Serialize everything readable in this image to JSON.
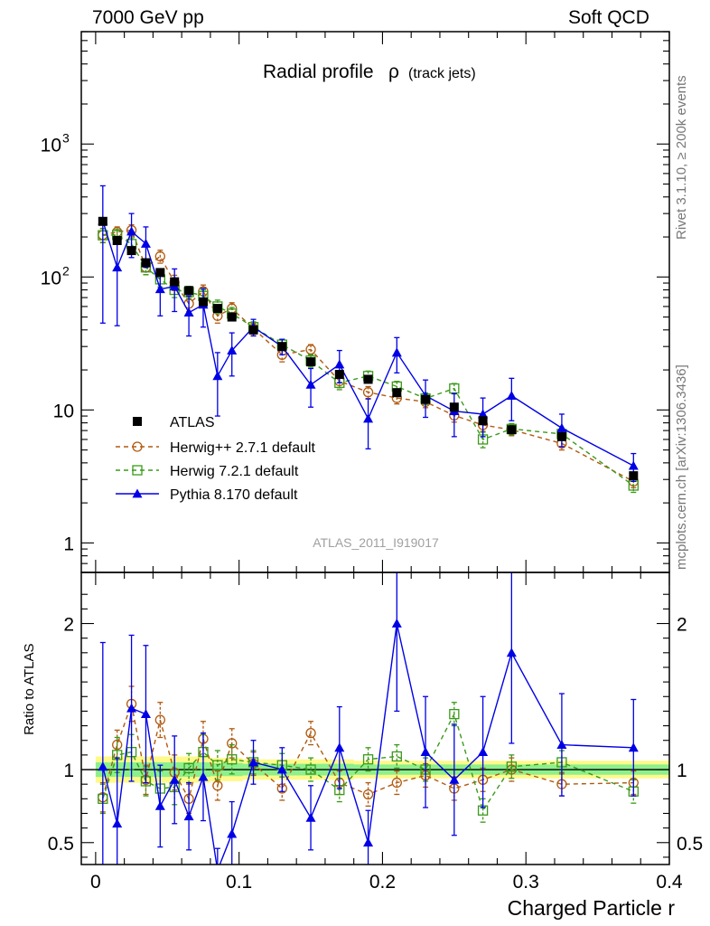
{
  "header": {
    "left": "7000 GeV pp",
    "right": "Soft QCD",
    "side_top": "Rivet 3.1.10, ≥ 200k events",
    "side_bottom": "mcplots.cern.ch [arXiv:1306.3436]"
  },
  "chart_data": {
    "type": "scatter",
    "title": "Radial profile",
    "title_symbol": "ρ",
    "title_sub": "(track jets)",
    "analysis_label": "ATLAS_2011_I919017",
    "xlabel": "Charged Particle r",
    "ylabel_ratio": "Ratio to ATLAS",
    "xlim": [
      -0.01,
      0.4
    ],
    "ylim_main": [
      0.6,
      7000
    ],
    "ylim_ratio": [
      0.35,
      2.35
    ],
    "x_ticks": [
      {
        "value": 0,
        "label": "0"
      },
      {
        "value": 0.1,
        "label": "0.1"
      },
      {
        "value": 0.2,
        "label": "0.2"
      },
      {
        "value": 0.3,
        "label": "0.3"
      },
      {
        "value": 0.4,
        "label": "0.4"
      }
    ],
    "y_ticks_main": [
      {
        "value": 1,
        "label": "1"
      },
      {
        "value": 10,
        "label": "10"
      },
      {
        "value": 100,
        "label": "10",
        "exp": "2"
      },
      {
        "value": 1000,
        "label": "10",
        "exp": "3"
      }
    ],
    "y_ticks_ratio": [
      {
        "value": 0.5,
        "label": "0.5"
      },
      {
        "value": 1,
        "label": "1"
      },
      {
        "value": 2,
        "label": "2"
      }
    ],
    "x": [
      0.005,
      0.015,
      0.025,
      0.035,
      0.045,
      0.055,
      0.065,
      0.075,
      0.085,
      0.095,
      0.11,
      0.13,
      0.15,
      0.17,
      0.19,
      0.21,
      0.23,
      0.25,
      0.27,
      0.29,
      0.325,
      0.375
    ],
    "series": [
      {
        "name": "ATLAS",
        "color": "#000000",
        "marker": "square-filled",
        "line": "none",
        "values": [
          262,
          188,
          158,
          128,
          108,
          92,
          79,
          65,
          58,
          50,
          40,
          30,
          23,
          18.5,
          17,
          13.5,
          12,
          10.5,
          8.3,
          7.1,
          6.3,
          3.2
        ],
        "errors": [
          0,
          0,
          0,
          0,
          0,
          0,
          0,
          0,
          0,
          0,
          0,
          0,
          0,
          0,
          0,
          0,
          0,
          0,
          0,
          0,
          0,
          0
        ]
      },
      {
        "name": "Herwig++ 2.7.1 default",
        "color": "#b05a10",
        "marker": "circle-open",
        "line": "dashed",
        "values": [
          207,
          218,
          225,
          118,
          143,
          91,
          63,
          78,
          51,
          58,
          41,
          26,
          28.5,
          16.5,
          13.6,
          12.3,
          11.5,
          9.1,
          7.7,
          7.1,
          5.6,
          2.9
        ],
        "errors": [
          25,
          20,
          22,
          14,
          16,
          12,
          8,
          9,
          6,
          6,
          4,
          3,
          2.5,
          1.8,
          1.4,
          1.2,
          1.1,
          1,
          0.8,
          0.7,
          0.6,
          0.3
        ],
        "ratio": [
          0.81,
          1.17,
          1.45,
          0.93,
          1.34,
          0.98,
          0.8,
          1.21,
          0.89,
          1.18,
          1.04,
          0.87,
          1.25,
          0.91,
          0.83,
          0.91,
          0.96,
          0.87,
          0.93,
          1.0,
          0.9,
          0.91
        ],
        "ratio_errors": [
          0.1,
          0.1,
          0.12,
          0.1,
          0.12,
          0.12,
          0.1,
          0.12,
          0.1,
          0.1,
          0.08,
          0.08,
          0.08,
          0.08,
          0.08,
          0.08,
          0.08,
          0.08,
          0.08,
          0.08,
          0.08,
          0.08
        ]
      },
      {
        "name": "Herwig 7.2.1 default",
        "color": "#3a9a1a",
        "marker": "square-open",
        "line": "dashed",
        "values": [
          206,
          207,
          177,
          118,
          96,
          80,
          77,
          72,
          60,
          53,
          42,
          31,
          23.5,
          16,
          18,
          15,
          12.2,
          14.5,
          6,
          7.2,
          6.6,
          2.7
        ],
        "errors": [
          25,
          20,
          20,
          14,
          12,
          10,
          8,
          8,
          7,
          6,
          4,
          3,
          2.5,
          1.8,
          1.6,
          1.4,
          1.2,
          1.3,
          0.8,
          0.7,
          0.6,
          0.3
        ],
        "ratio": [
          0.8,
          1.1,
          1.12,
          0.92,
          0.87,
          0.88,
          1.01,
          1.12,
          1.03,
          1.07,
          1.05,
          1.03,
          1.0,
          0.86,
          1.07,
          1.09,
          1.0,
          1.38,
          0.72,
          1.02,
          1.05,
          0.85
        ],
        "ratio_errors": [
          0.1,
          0.12,
          0.12,
          0.1,
          0.12,
          0.12,
          0.1,
          0.12,
          0.1,
          0.1,
          0.08,
          0.08,
          0.08,
          0.08,
          0.08,
          0.08,
          0.08,
          0.08,
          0.08,
          0.08,
          0.08,
          0.08
        ]
      },
      {
        "name": "Pythia 8.170 default",
        "color": "#0000e6",
        "marker": "triangle-filled",
        "line": "solid",
        "values": [
          265,
          118,
          220,
          178,
          81,
          85,
          54,
          62,
          18,
          28,
          42,
          30,
          15.5,
          22,
          8.6,
          27,
          12.8,
          9.8,
          9.3,
          12.8,
          7.3,
          3.8
        ],
        "errors": [
          220,
          75,
          80,
          60,
          30,
          30,
          18,
          20,
          9,
          10,
          6,
          4,
          5,
          6,
          3.5,
          8,
          4,
          3.5,
          3,
          4.5,
          2,
          0.9
        ],
        "ratio": [
          1.02,
          0.63,
          1.42,
          1.38,
          0.75,
          0.93,
          0.68,
          0.95,
          0.31,
          0.56,
          1.05,
          1.0,
          0.67,
          1.15,
          0.5,
          2.0,
          1.12,
          0.93,
          1.12,
          1.8,
          1.17,
          1.15
        ],
        "ratio_errors": [
          0.85,
          0.45,
          0.5,
          0.47,
          0.28,
          0.3,
          0.23,
          0.3,
          0.15,
          0.22,
          0.15,
          0.15,
          0.22,
          0.28,
          0.22,
          0.6,
          0.38,
          0.38,
          0.38,
          0.62,
          0.35,
          0.33
        ]
      }
    ],
    "ratio_bands": {
      "yellow_halfwidth": [
        0.09,
        0.09,
        0.09,
        0.09,
        0.09,
        0.09,
        0.09,
        0.09,
        0.08,
        0.08,
        0.07,
        0.07,
        0.07,
        0.07,
        0.06,
        0.06,
        0.06,
        0.06,
        0.06,
        0.06,
        0.06,
        0.06
      ],
      "green_halfwidth": [
        0.05,
        0.05,
        0.05,
        0.05,
        0.05,
        0.05,
        0.05,
        0.05,
        0.045,
        0.045,
        0.04,
        0.04,
        0.04,
        0.04,
        0.035,
        0.035,
        0.035,
        0.035,
        0.035,
        0.035,
        0.035,
        0.035
      ]
    },
    "legend_position": "center-left"
  }
}
